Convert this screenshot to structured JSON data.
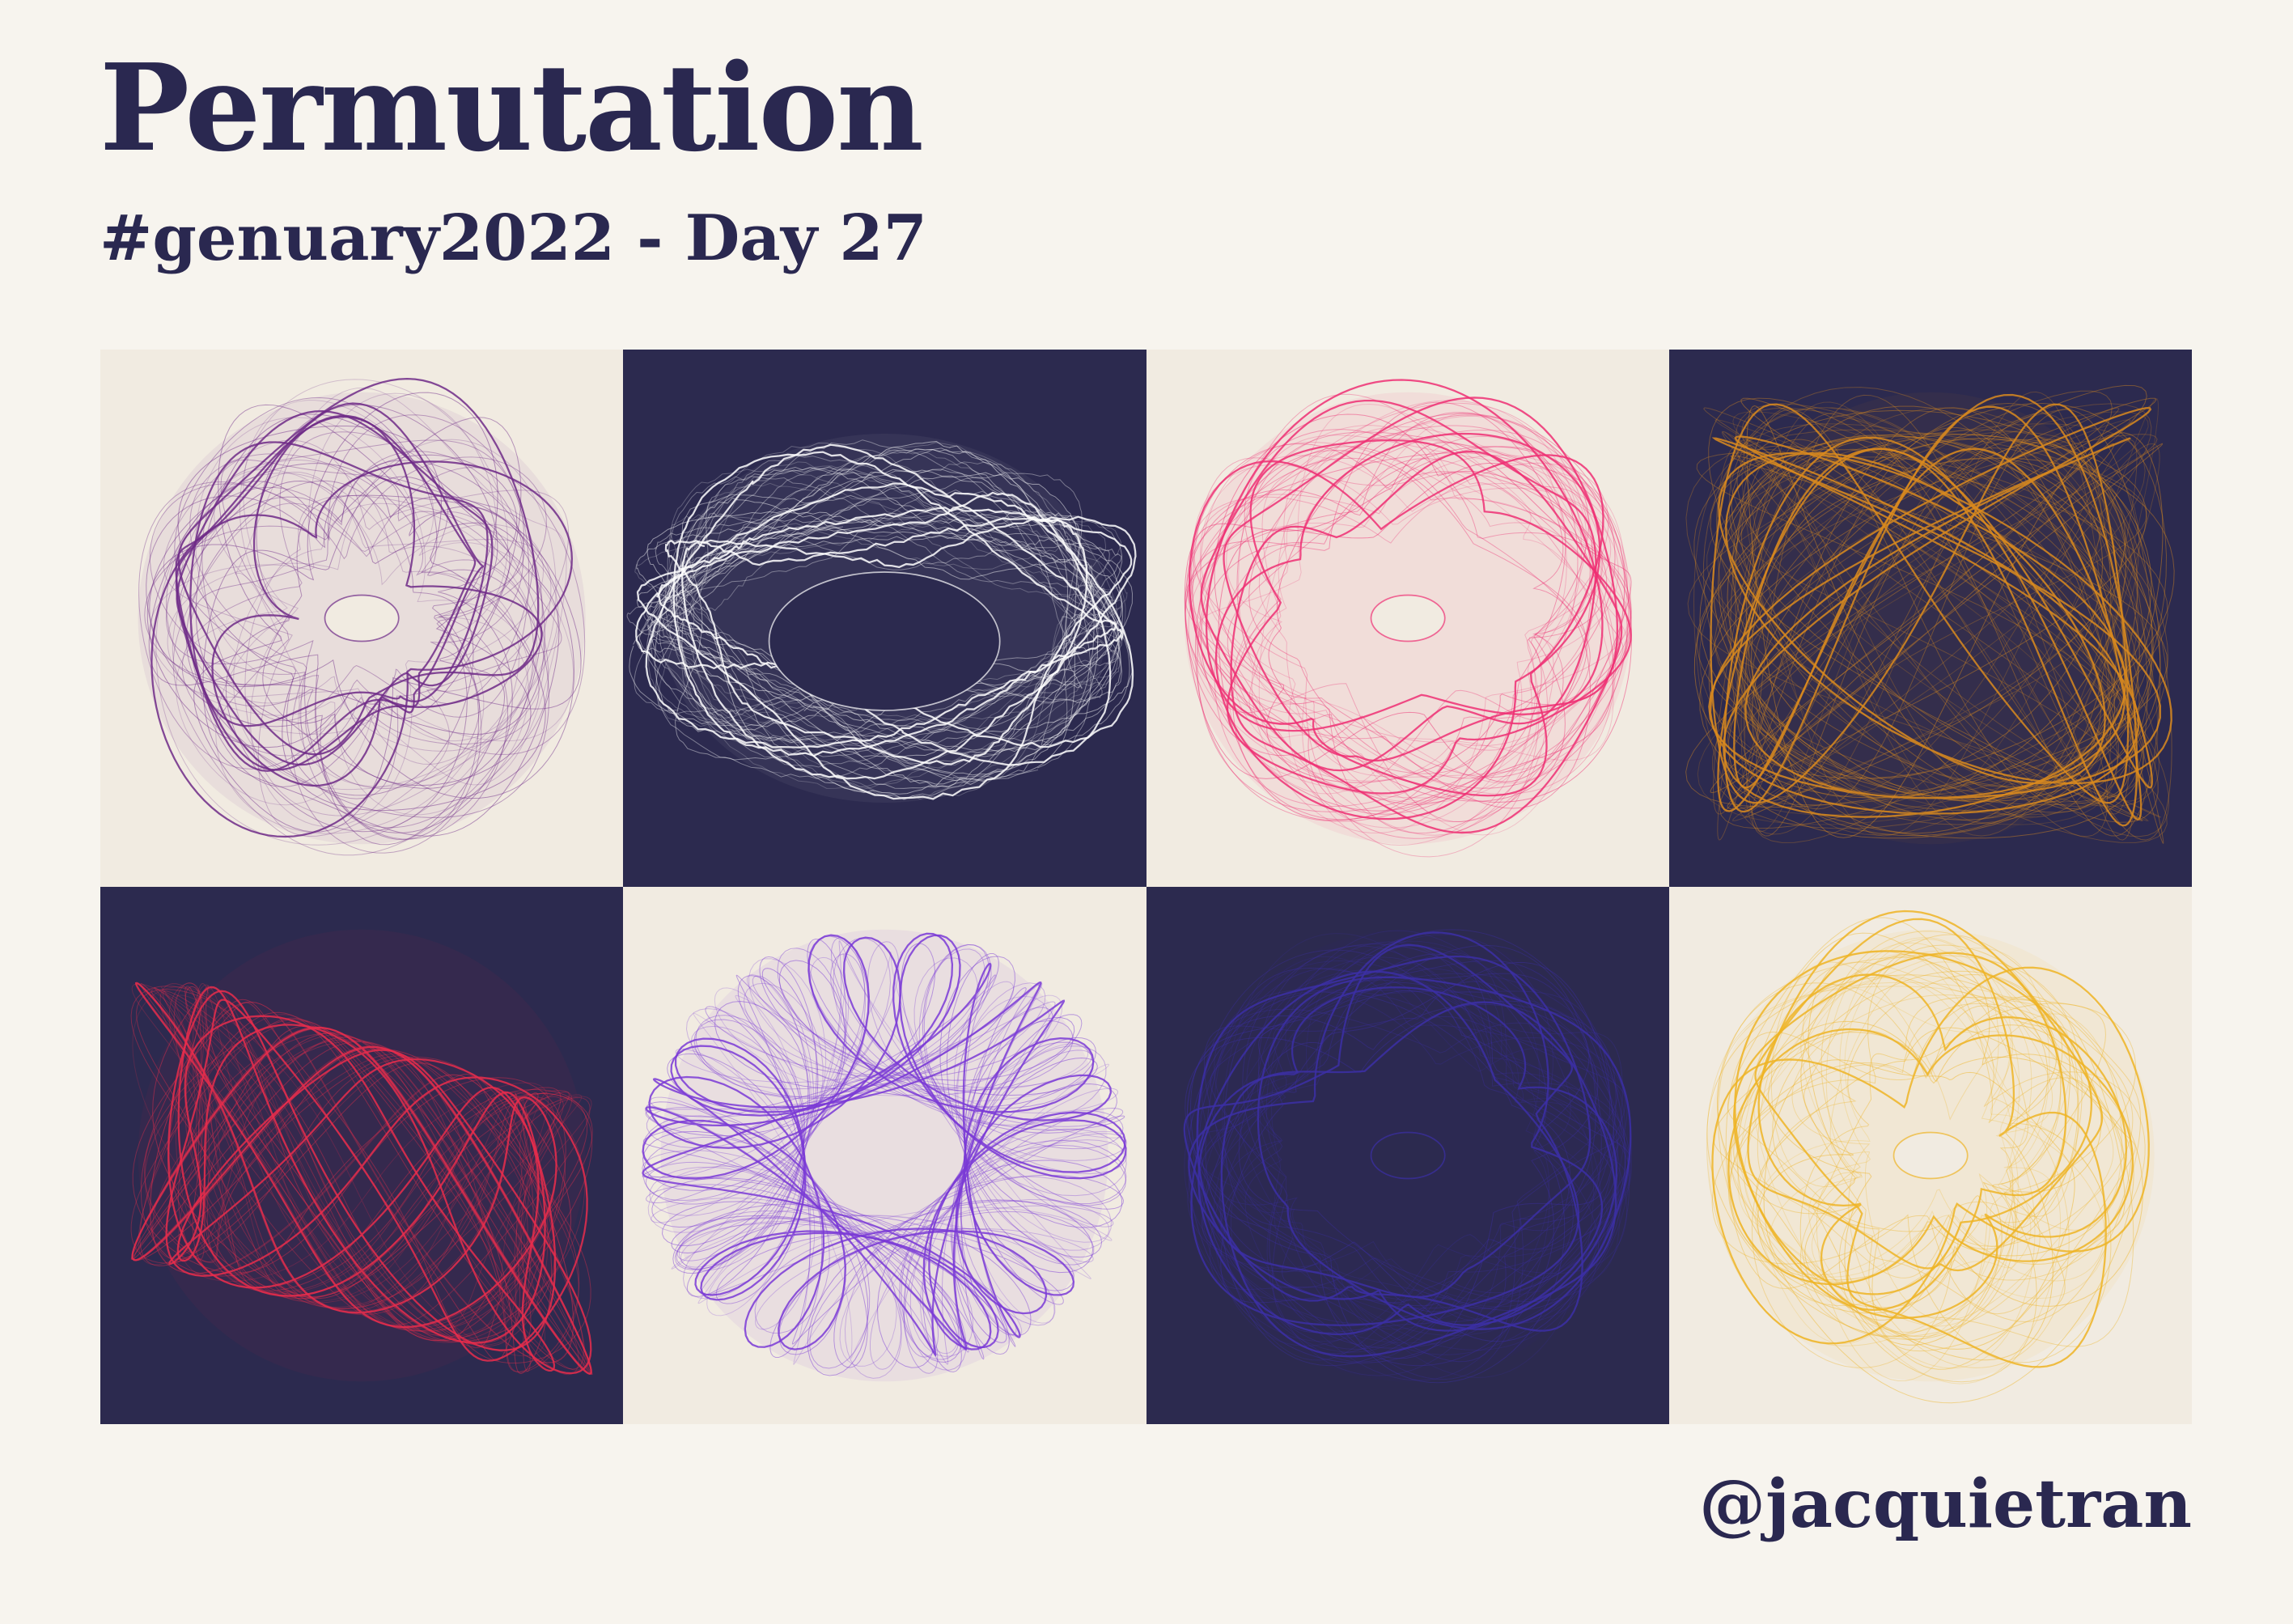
{
  "header": {
    "title": "Permutation",
    "subtitle": "#genuary2022 - Day 27"
  },
  "footer": {
    "handle": "@jacquietran"
  },
  "palette": {
    "text": "#2a2850",
    "page_background": "#f7f4ee",
    "light_tile": "#f1ebe1",
    "dark_tile": "#2c2a4f"
  },
  "artworks": [
    {
      "name": "attractor-purple-on-cream",
      "background": "#f1ebe1",
      "stroke": "#6e2a87",
      "shape": "sphere"
    },
    {
      "name": "attractor-white-on-navy",
      "background": "#2c2a4f",
      "stroke": "#ffffff",
      "shape": "ring"
    },
    {
      "name": "attractor-pink-on-cream",
      "background": "#f1ebe1",
      "stroke": "#ee2f73",
      "shape": "torus"
    },
    {
      "name": "attractor-orange-on-navy",
      "background": "#2c2a4f",
      "stroke": "#d98a1e",
      "shape": "figure-eight"
    },
    {
      "name": "attractor-red-on-navy",
      "background": "#2c2a4f",
      "stroke": "#e82d4c",
      "shape": "twist"
    },
    {
      "name": "attractor-violet-on-cream",
      "background": "#f1ebe1",
      "stroke": "#7a3ad6",
      "shape": "knot"
    },
    {
      "name": "attractor-indigo-on-navy",
      "background": "#2c2a4f",
      "stroke": "#3c2fa6",
      "shape": "torus"
    },
    {
      "name": "attractor-yellow-on-cream",
      "background": "#f1ebe1",
      "stroke": "#eeb425",
      "shape": "sphere"
    }
  ]
}
